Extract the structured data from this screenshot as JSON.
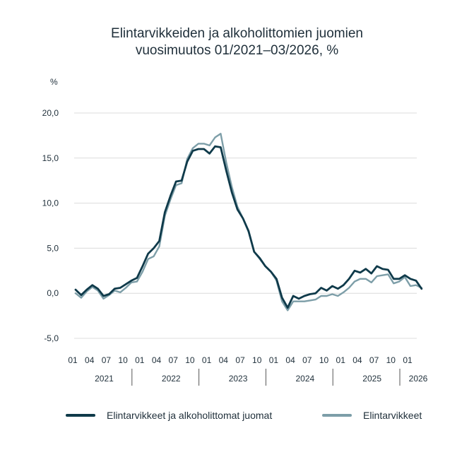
{
  "title": {
    "line1": "Elintarvikkeiden ja alkoholittomien juomien",
    "line2": "vuosimuutos 01/2021–03/2026, %"
  },
  "colors": {
    "series1": "#0f3a4a",
    "series2": "#7d9ea8",
    "grid": "#dcdcdc",
    "text": "#1f2f3a"
  },
  "chart_data": {
    "type": "line",
    "ylabel": "%",
    "ylim": [
      -5,
      20
    ],
    "yticks": [
      "20,0",
      "15,0",
      "10,0",
      "5,0",
      "0,0",
      "-5,0"
    ],
    "ytick_values": [
      20,
      15,
      10,
      5,
      0,
      -5
    ],
    "grid": true,
    "legend_position": "bottom",
    "month_ticks": [
      "01",
      "04",
      "07",
      "10"
    ],
    "years": [
      "2021",
      "2022",
      "2023",
      "2024",
      "2025",
      "2026"
    ],
    "x_start": "2021-01",
    "x_end": "2026-03",
    "series": [
      {
        "name": "Elintarvikkeet ja alkoholittomat juomat",
        "values": [
          0.4,
          -0.2,
          0.4,
          0.9,
          0.5,
          -0.3,
          -0.1,
          0.5,
          0.6,
          1.0,
          1.4,
          1.7,
          3.0,
          4.4,
          5.0,
          5.8,
          9.0,
          10.8,
          12.4,
          12.5,
          14.6,
          15.8,
          16.0,
          16.0,
          15.5,
          16.3,
          16.2,
          13.6,
          11.2,
          9.3,
          8.3,
          6.9,
          4.6,
          3.9,
          3.0,
          2.4,
          1.6,
          -0.5,
          -1.6,
          -0.3,
          -0.6,
          -0.3,
          -0.1,
          0.0,
          0.6,
          0.3,
          0.8,
          0.5,
          0.9,
          1.6,
          2.5,
          2.3,
          2.7,
          2.2,
          3.0,
          2.7,
          2.6,
          1.6,
          1.6,
          2.0,
          1.6,
          1.4,
          0.5
        ]
      },
      {
        "name": "Elintarvikkeet",
        "values": [
          0.0,
          -0.5,
          0.2,
          0.7,
          0.3,
          -0.6,
          -0.2,
          0.3,
          0.1,
          0.6,
          1.2,
          1.3,
          2.4,
          3.8,
          4.1,
          5.2,
          8.6,
          10.4,
          12.0,
          12.2,
          14.9,
          16.1,
          16.6,
          16.6,
          16.4,
          17.3,
          17.7,
          14.5,
          11.8,
          9.6,
          8.3,
          6.8,
          4.6,
          3.8,
          3.0,
          2.4,
          1.4,
          -0.9,
          -1.9,
          -0.9,
          -0.9,
          -0.9,
          -0.8,
          -0.7,
          -0.3,
          -0.3,
          -0.1,
          -0.3,
          0.1,
          0.6,
          1.3,
          1.6,
          1.6,
          1.2,
          1.9,
          2.0,
          2.1,
          1.1,
          1.3,
          1.8,
          0.8,
          0.9,
          0.6
        ]
      }
    ]
  }
}
